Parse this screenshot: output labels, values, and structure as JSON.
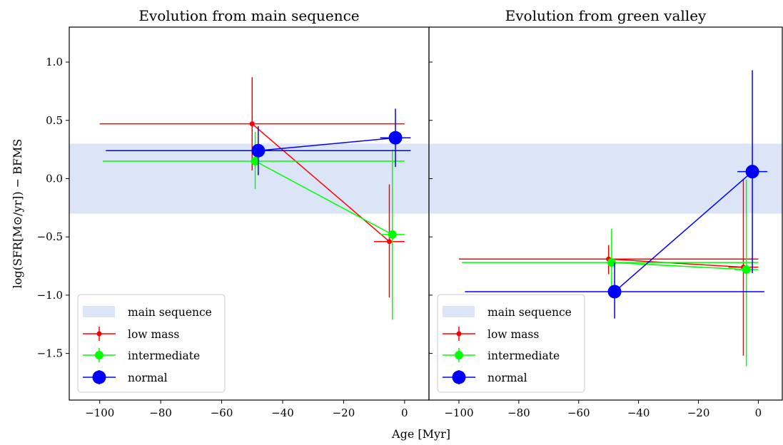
{
  "colors": {
    "band": "#dce4f8",
    "low mass": "#ff0000",
    "intermediate": "#00ff00",
    "normal": "#0000ff"
  },
  "chart_data": {
    "type": "scatter",
    "xlabel": "Age [Myr]",
    "ylabel": "log(SFR[M⊙/yr]) − BFMS",
    "xlim": [
      -110,
      8
    ],
    "ylim": [
      -1.9,
      1.3
    ],
    "xticks": [
      -100,
      -80,
      -60,
      -40,
      -20,
      0
    ],
    "xtick_labels": [
      "−100",
      "−80",
      "−60",
      "−40",
      "−20",
      "0"
    ],
    "yticks": [
      1.0,
      0.5,
      0.0,
      -0.5,
      -1.0,
      -1.5
    ],
    "ytick_labels": [
      "1.0",
      "0.5",
      "0.0",
      "−0.5",
      "−1.0",
      "−1.5"
    ],
    "band": {
      "label": "main sequence",
      "y": [
        -0.3,
        0.3
      ]
    },
    "legend_position": "lower-left",
    "grid": false,
    "panels": [
      {
        "title": "Evolution from main sequence",
        "series": [
          {
            "name": "low mass",
            "points": [
              {
                "x": -50,
                "y": 0.47,
                "x_range": [
                  -100,
                  0
                ],
                "y_range": [
                  0.07,
                  0.87
                ]
              },
              {
                "x": -5,
                "y": -0.54,
                "x_range": [
                  -10,
                  0
                ],
                "y_range": [
                  -1.02,
                  -0.05
                ]
              }
            ]
          },
          {
            "name": "intermediate",
            "points": [
              {
                "x": -49,
                "y": 0.15,
                "x_range": [
                  -99,
                  0
                ],
                "y_range": [
                  -0.09,
                  0.4
                ]
              },
              {
                "x": -4,
                "y": -0.48,
                "x_range": [
                  -8,
                  0
                ],
                "y_range": [
                  -1.21,
                  0.25
                ]
              }
            ]
          },
          {
            "name": "normal",
            "points": [
              {
                "x": -48,
                "y": 0.24,
                "x_range": [
                  -98,
                  2
                ],
                "y_range": [
                  0.03,
                  0.45
                ]
              },
              {
                "x": -3,
                "y": 0.35,
                "x_range": [
                  -8,
                  2
                ],
                "y_range": [
                  0.1,
                  0.6
                ]
              }
            ]
          }
        ]
      },
      {
        "title": "Evolution from green valley",
        "series": [
          {
            "name": "low mass",
            "points": [
              {
                "x": -50,
                "y": -0.69,
                "x_range": [
                  -100,
                  0
                ],
                "y_range": [
                  -0.82,
                  -0.57
                ]
              },
              {
                "x": -5,
                "y": -0.76,
                "x_range": [
                  -10,
                  0
                ],
                "y_range": [
                  -1.52,
                  0.0
                ]
              }
            ]
          },
          {
            "name": "intermediate",
            "points": [
              {
                "x": -49,
                "y": -0.72,
                "x_range": [
                  -99,
                  0
                ],
                "y_range": [
                  -1.0,
                  -0.43
                ]
              },
              {
                "x": -4,
                "y": -0.78,
                "x_range": [
                  -8,
                  0
                ],
                "y_range": [
                  -1.61,
                  -0.01
                ]
              }
            ]
          },
          {
            "name": "normal",
            "points": [
              {
                "x": -48,
                "y": -0.97,
                "x_range": [
                  -98,
                  2
                ],
                "y_range": [
                  -1.2,
                  -0.72
                ]
              },
              {
                "x": -2,
                "y": 0.06,
                "x_range": [
                  -7,
                  3
                ],
                "y_range": [
                  -0.81,
                  0.93
                ]
              }
            ]
          }
        ]
      }
    ]
  }
}
